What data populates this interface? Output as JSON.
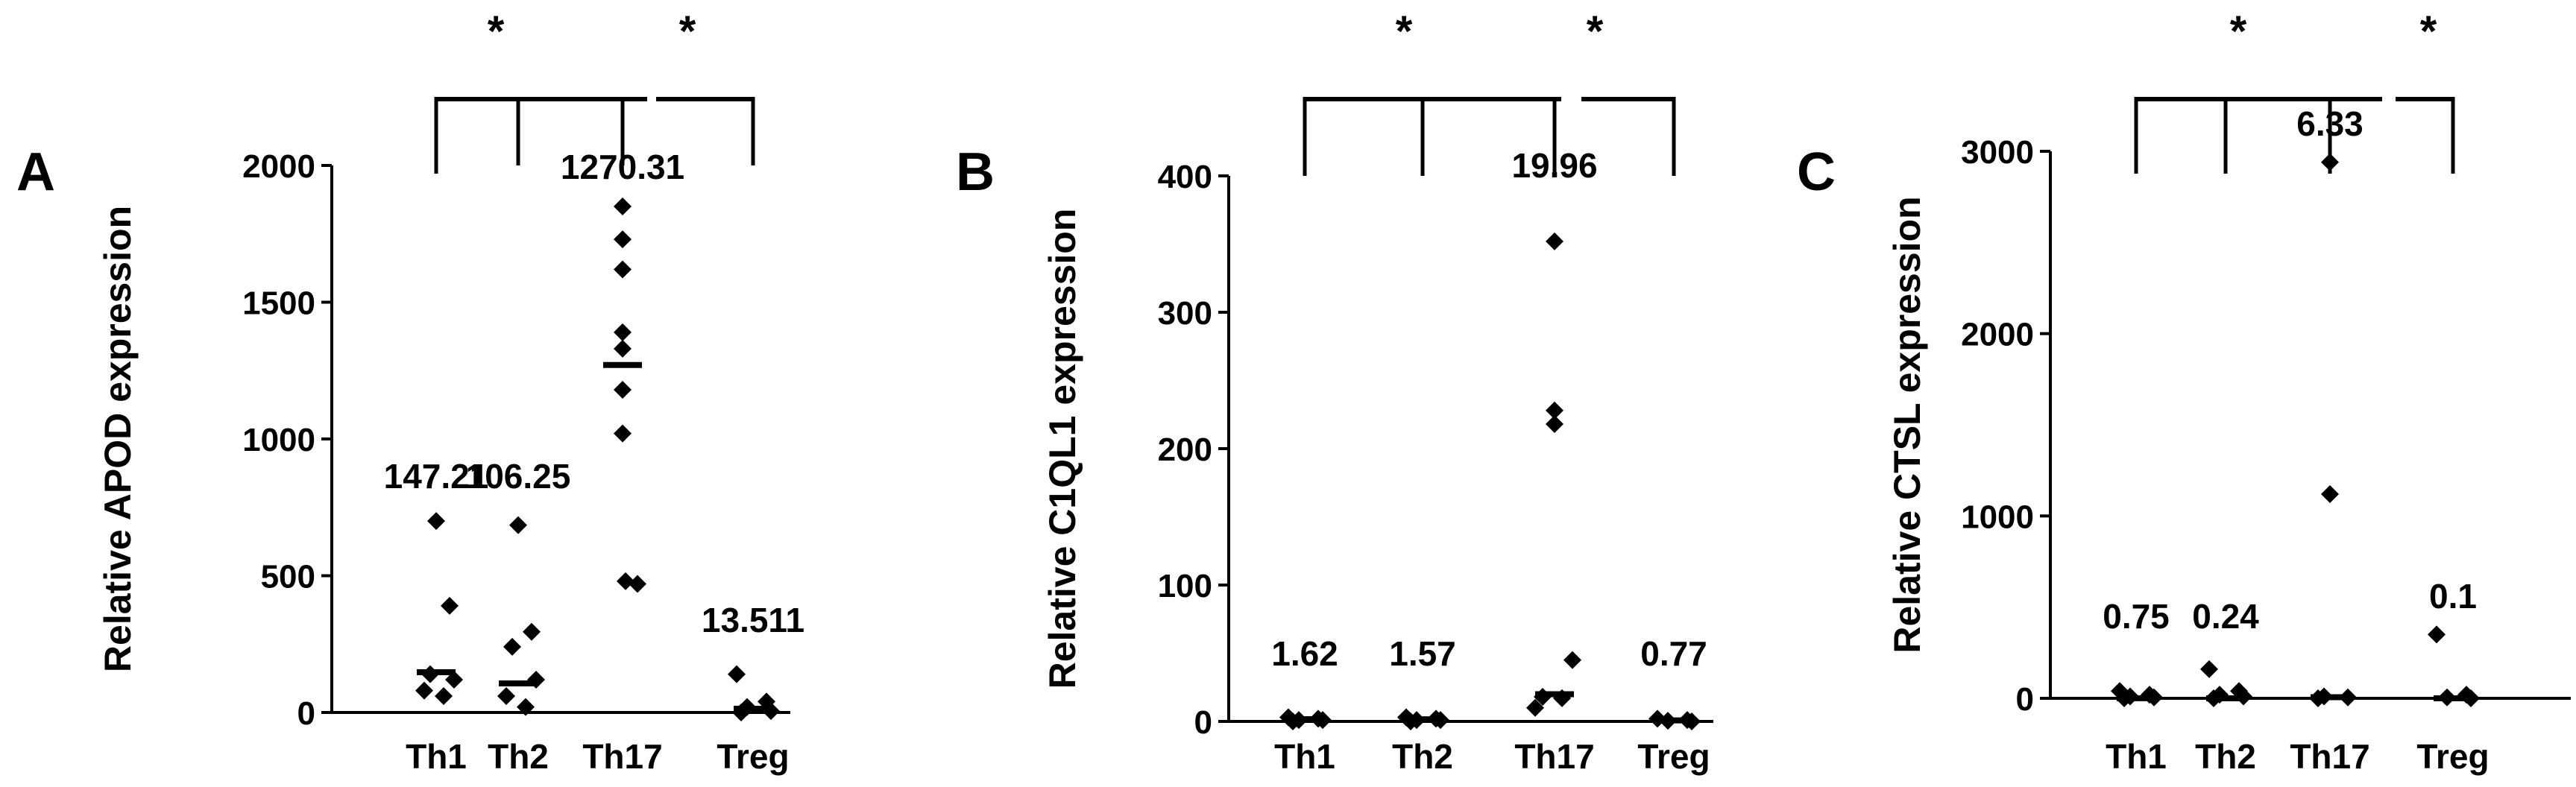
{
  "chart_data": [
    {
      "type": "scatter",
      "panel_label": "A",
      "ylabel": "Relative APOD expression",
      "ylim": [
        0,
        2000
      ],
      "yticks": [
        "0",
        "500",
        "1000",
        "1500",
        "2000"
      ],
      "categories": [
        "Th1",
        "Th2",
        "Th17",
        "Treg"
      ],
      "points": [
        [
          700,
          390,
          140,
          120,
          80,
          60
        ],
        [
          685,
          295,
          240,
          120,
          60,
          20
        ],
        [
          1850,
          1730,
          1620,
          1390,
          1330,
          1180,
          1020,
          480,
          470
        ],
        [
          140,
          40,
          20,
          5,
          0
        ]
      ],
      "medians": [
        147.21,
        106.25,
        1270.31,
        13.511
      ],
      "median_labels": [
        "147.21",
        "106.25",
        "1270.31",
        "13.511"
      ],
      "significance": [
        "*",
        "*"
      ]
    },
    {
      "type": "scatter",
      "panel_label": "B",
      "ylabel": "Relative C1QL1 expression",
      "ylim": [
        0,
        400
      ],
      "yticks": [
        "0",
        "100",
        "200",
        "300",
        "400"
      ],
      "categories": [
        "Th1",
        "Th2",
        "Th17",
        "Treg"
      ],
      "points": [
        [
          3,
          2,
          1,
          1,
          0
        ],
        [
          3,
          2,
          1,
          1,
          0
        ],
        [
          352,
          228,
          218,
          45,
          18,
          17,
          10
        ],
        [
          2,
          1,
          0.5,
          0
        ]
      ],
      "medians": [
        1.62,
        1.57,
        19.96,
        0.77
      ],
      "median_labels": [
        "1.62",
        "1.57",
        "19.96",
        "0.77"
      ],
      "significance": [
        "*",
        "*"
      ]
    },
    {
      "type": "scatter",
      "panel_label": "C",
      "ylabel": "Relative CTSL expression",
      "ylim": [
        0,
        3000
      ],
      "yticks": [
        "0",
        "1000",
        "2000",
        "3000"
      ],
      "categories": [
        "Th1",
        "Th2",
        "Th17",
        "Treg"
      ],
      "points": [
        [
          40,
          20,
          10,
          5,
          0
        ],
        [
          160,
          40,
          20,
          10,
          0
        ],
        [
          2940,
          1120,
          10,
          5,
          0
        ],
        [
          350,
          20,
          5,
          0
        ]
      ],
      "medians": [
        0.75,
        0.24,
        6.33,
        0.1
      ],
      "median_labels": [
        "0.75",
        "0.24",
        "6.33",
        "0.1"
      ],
      "significance": [
        "*",
        "*"
      ]
    }
  ]
}
